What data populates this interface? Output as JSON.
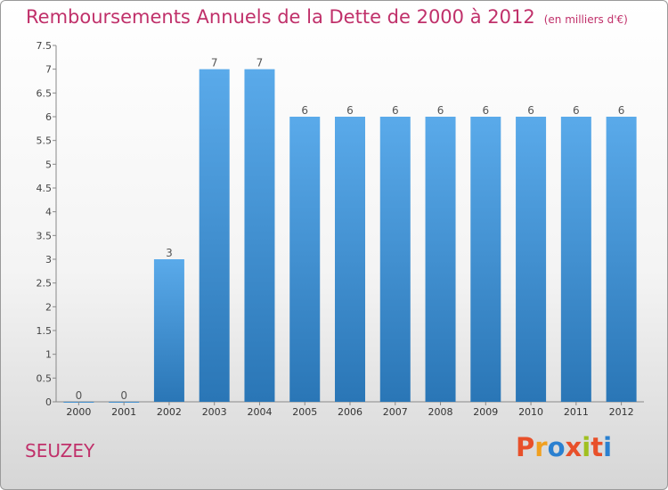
{
  "header": {
    "title": "Remboursements Annuels de la Dette de 2000 à 2012",
    "subtitle": "(en milliers d'€)"
  },
  "footer": {
    "location": "SEUZEY",
    "logo_text": "Proxiti"
  },
  "colors": {
    "title": "#c0306a",
    "bar_light": "#5aaaea",
    "bar_dark": "#2a76b6",
    "logo_letters": [
      "#e8502a",
      "#f0a020",
      "#2a80d0",
      "#e8502a",
      "#a0c020",
      "#e8502a",
      "#2a80d0"
    ]
  },
  "chart_data": {
    "type": "bar",
    "title": "Remboursements Annuels de la Dette de 2000 à 2012",
    "xlabel": "",
    "ylabel": "",
    "ylim": [
      0,
      7.5
    ],
    "yticks": [
      "0",
      "0.5",
      "1",
      "1.5",
      "2",
      "2.5",
      "3",
      "3.5",
      "4",
      "4.5",
      "5",
      "5.5",
      "6",
      "6.5",
      "7",
      "7.5"
    ],
    "categories": [
      "2000",
      "2001",
      "2002",
      "2003",
      "2004",
      "2005",
      "2006",
      "2007",
      "2008",
      "2009",
      "2010",
      "2011",
      "2012"
    ],
    "values": [
      0,
      0,
      3,
      7,
      7,
      6,
      6,
      6,
      6,
      6,
      6,
      6,
      6
    ],
    "value_labels": [
      "0",
      "0",
      "3",
      "7",
      "7",
      "6",
      "6",
      "6",
      "6",
      "6",
      "6",
      "6",
      "6"
    ],
    "grid": false,
    "legend": "none"
  }
}
